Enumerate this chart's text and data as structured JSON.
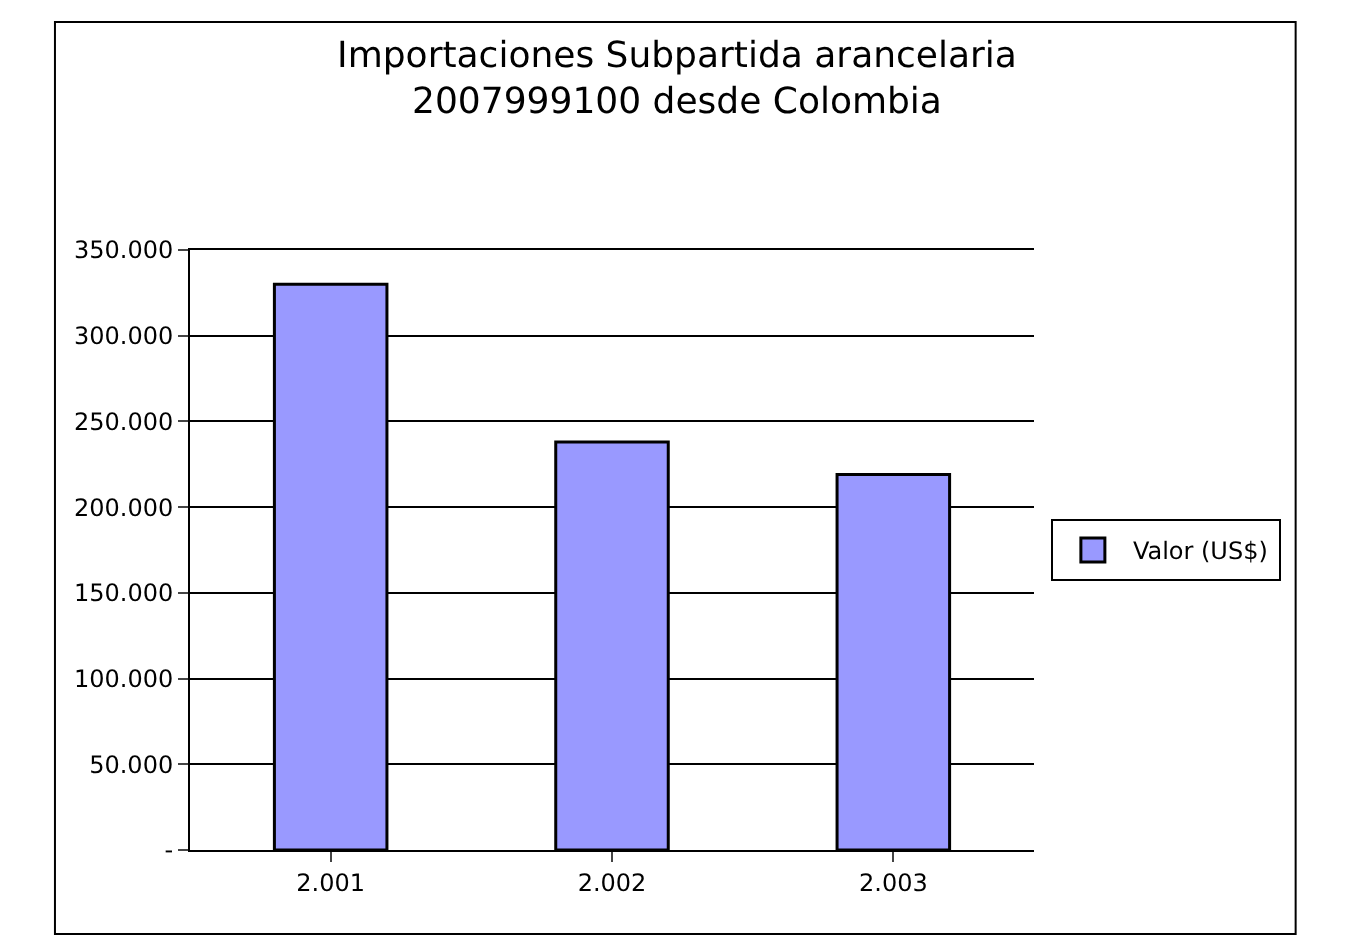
{
  "chart_data": {
    "type": "bar",
    "title": "Importaciones Subpartida arancelaria\n2007999100 desde Colombia",
    "categories": [
      "2.001",
      "2.002",
      "2.003"
    ],
    "series": [
      {
        "name": "Valor (US$)",
        "color": "#9999ff",
        "values": [
          330000,
          238000,
          219000
        ]
      }
    ],
    "ylim": [
      0,
      350000
    ],
    "yticks": [
      {
        "value": 0,
        "label": "-"
      },
      {
        "value": 50000,
        "label": "50.000"
      },
      {
        "value": 100000,
        "label": "100.000"
      },
      {
        "value": 150000,
        "label": "150.000"
      },
      {
        "value": 200000,
        "label": "200.000"
      },
      {
        "value": 250000,
        "label": "250.000"
      },
      {
        "value": 300000,
        "label": "300.000"
      },
      {
        "value": 350000,
        "label": "350.000"
      }
    ],
    "grid": "y",
    "legend": "right"
  }
}
